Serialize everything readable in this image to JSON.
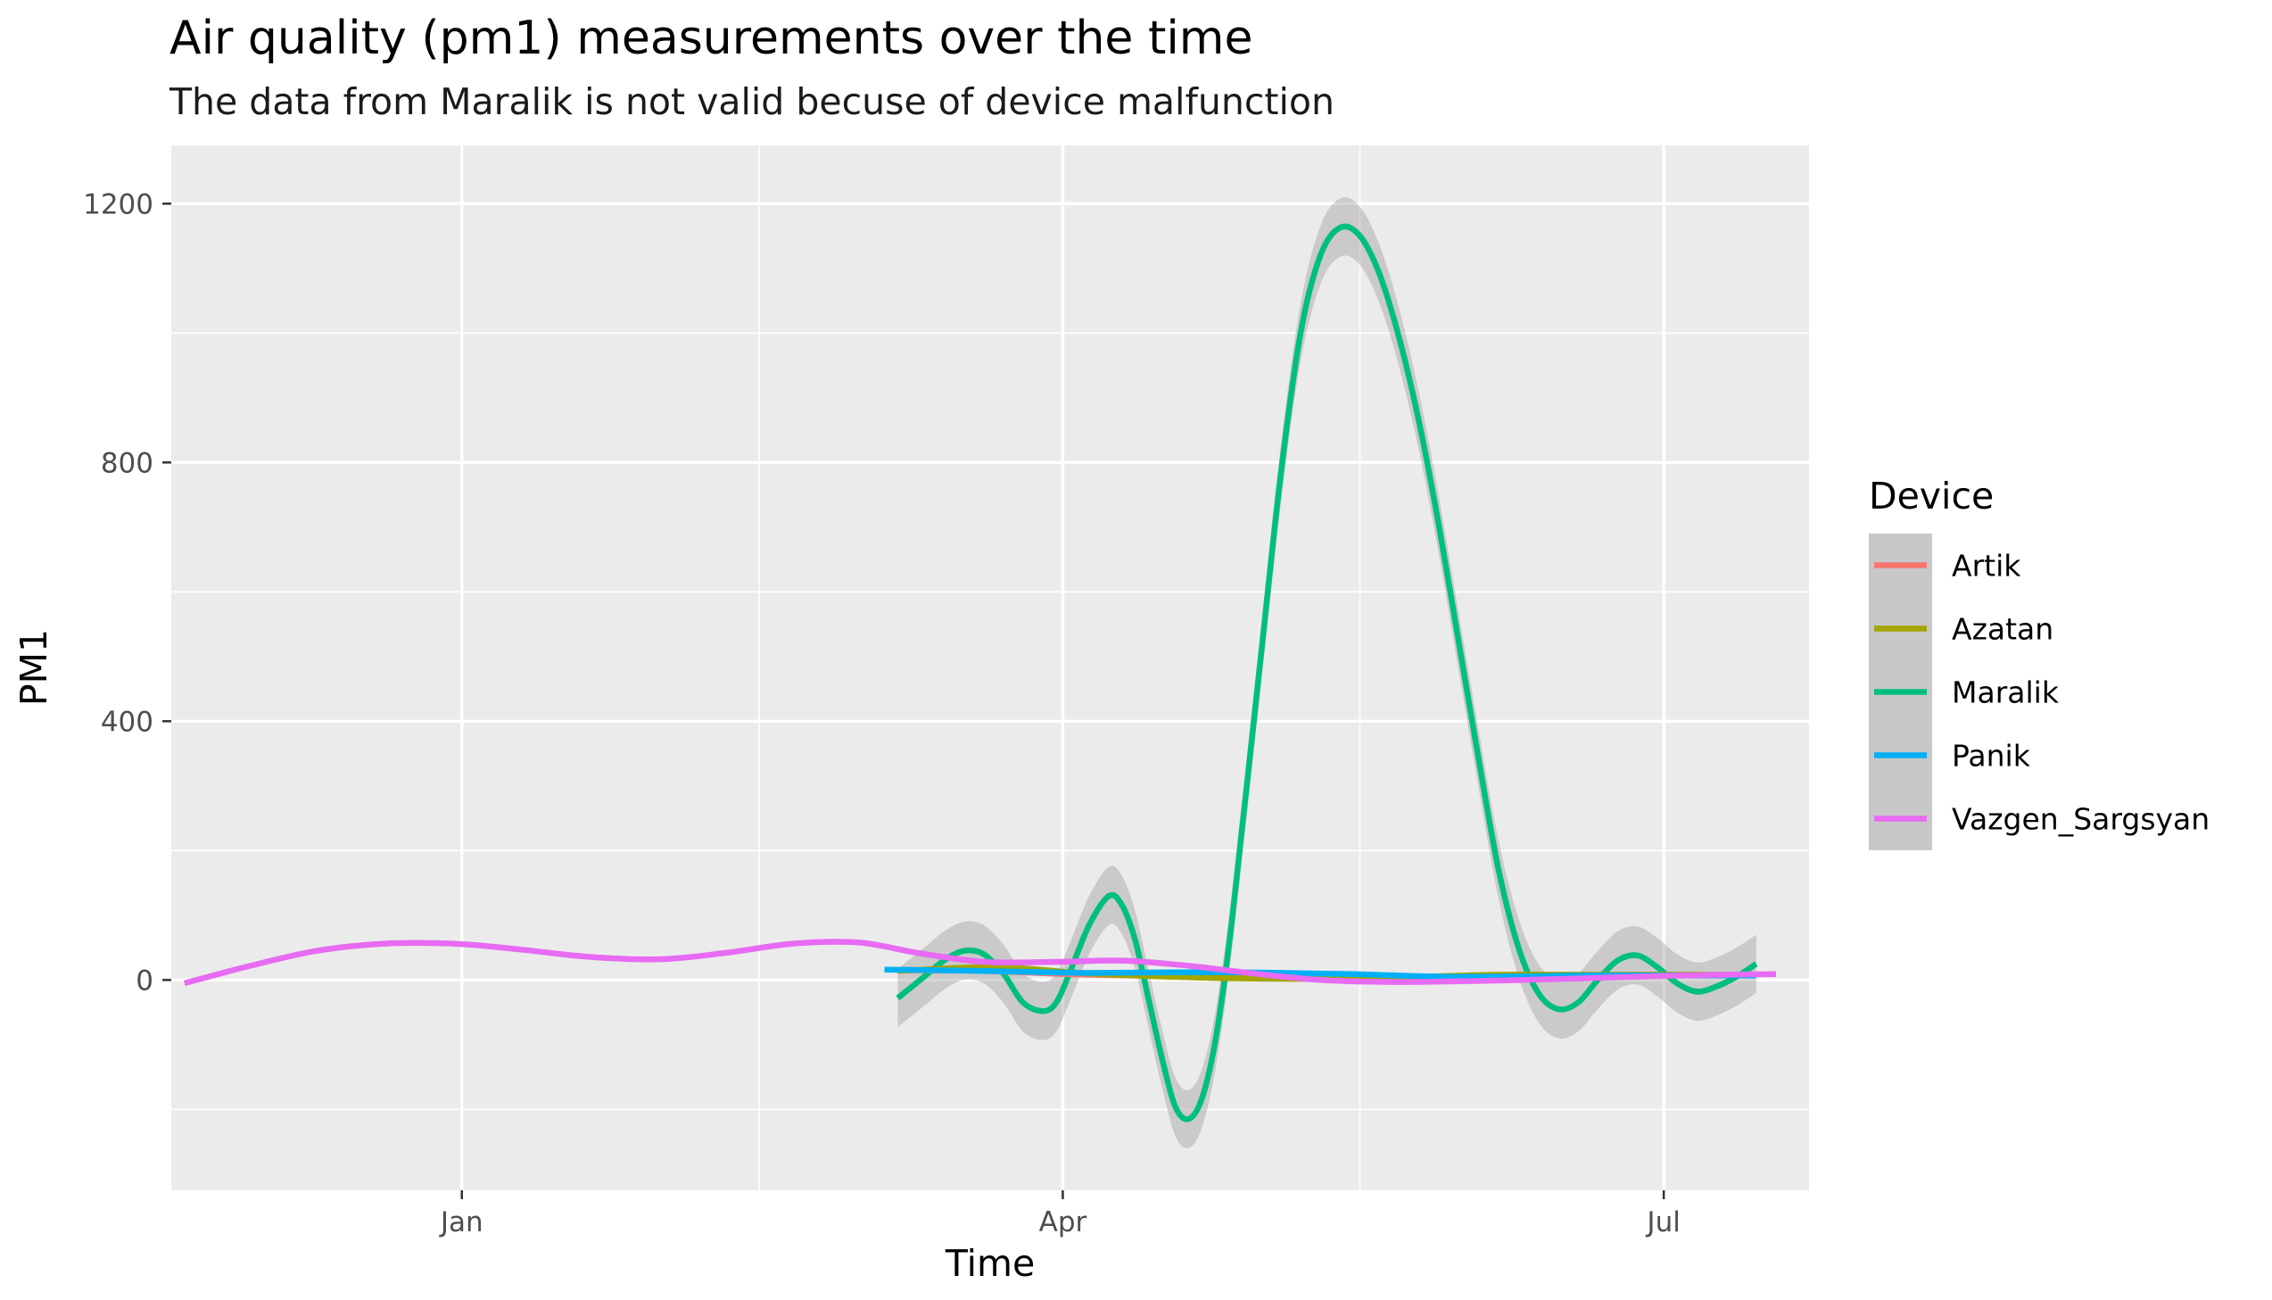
{
  "chart_data": {
    "type": "line",
    "title": "Air quality (pm1) measurements over the time",
    "subtitle": "The data from Maralik is not valid becuse of device malfunction",
    "xlabel": "Time",
    "ylabel": "PM1",
    "x_axis_type": "date",
    "xlim": [
      "2019-11-18",
      "2020-07-23"
    ],
    "ylim": [
      -325,
      1290
    ],
    "x_ticks": [
      {
        "date": "2020-01-01",
        "label": "Jan"
      },
      {
        "date": "2020-04-01",
        "label": "Apr"
      },
      {
        "date": "2020-07-01",
        "label": "Jul"
      }
    ],
    "x_minor_dates": [
      "2019-11-16",
      "2020-02-15",
      "2020-05-16"
    ],
    "y_ticks": [
      0,
      400,
      800,
      1200
    ],
    "y_minor": [
      -200,
      200,
      600,
      1000
    ],
    "grid": true,
    "legend": {
      "title": "Device",
      "position": "right"
    },
    "series": [
      {
        "name": "Artik",
        "color": "#F8766D",
        "points": [
          [
            "2020-03-07",
            15
          ],
          [
            "2020-03-20",
            14
          ],
          [
            "2020-04-05",
            8
          ],
          [
            "2020-04-25",
            5
          ],
          [
            "2020-05-15",
            4
          ],
          [
            "2020-06-05",
            6
          ],
          [
            "2020-06-25",
            8
          ],
          [
            "2020-07-12",
            8
          ]
        ]
      },
      {
        "name": "Azatan",
        "color": "#A3A500",
        "points": [
          [
            "2020-03-07",
            14
          ],
          [
            "2020-03-22",
            20
          ],
          [
            "2020-04-05",
            10
          ],
          [
            "2020-04-25",
            3
          ],
          [
            "2020-05-15",
            2
          ],
          [
            "2020-06-05",
            8
          ],
          [
            "2020-06-25",
            8
          ],
          [
            "2020-07-10",
            8
          ]
        ]
      },
      {
        "name": "Maralik",
        "color": "#00BF7D",
        "band": 45,
        "points": [
          [
            "2020-03-07",
            -28
          ],
          [
            "2020-03-11",
            5
          ],
          [
            "2020-03-14",
            30
          ],
          [
            "2020-03-17",
            45
          ],
          [
            "2020-03-20",
            40
          ],
          [
            "2020-03-23",
            10
          ],
          [
            "2020-03-26",
            -35
          ],
          [
            "2020-03-29",
            -48
          ],
          [
            "2020-03-31",
            -35
          ],
          [
            "2020-04-02",
            10
          ],
          [
            "2020-04-05",
            85
          ],
          [
            "2020-04-08",
            130
          ],
          [
            "2020-04-10",
            115
          ],
          [
            "2020-04-12",
            60
          ],
          [
            "2020-04-14",
            -30
          ],
          [
            "2020-04-16",
            -120
          ],
          [
            "2020-04-18",
            -195
          ],
          [
            "2020-04-20",
            -215
          ],
          [
            "2020-04-22",
            -185
          ],
          [
            "2020-04-24",
            -100
          ],
          [
            "2020-04-26",
            40
          ],
          [
            "2020-04-28",
            220
          ],
          [
            "2020-05-01",
            500
          ],
          [
            "2020-05-04",
            780
          ],
          [
            "2020-05-07",
            1000
          ],
          [
            "2020-05-10",
            1120
          ],
          [
            "2020-05-13",
            1163
          ],
          [
            "2020-05-16",
            1150
          ],
          [
            "2020-05-19",
            1090
          ],
          [
            "2020-05-22",
            990
          ],
          [
            "2020-05-25",
            860
          ],
          [
            "2020-05-28",
            700
          ],
          [
            "2020-05-31",
            520
          ],
          [
            "2020-06-03",
            340
          ],
          [
            "2020-06-06",
            170
          ],
          [
            "2020-06-09",
            50
          ],
          [
            "2020-06-12",
            -20
          ],
          [
            "2020-06-15",
            -45
          ],
          [
            "2020-06-18",
            -35
          ],
          [
            "2020-06-21",
            0
          ],
          [
            "2020-06-24",
            30
          ],
          [
            "2020-06-27",
            38
          ],
          [
            "2020-06-30",
            20
          ],
          [
            "2020-07-03",
            -5
          ],
          [
            "2020-07-06",
            -18
          ],
          [
            "2020-07-09",
            -10
          ],
          [
            "2020-07-12",
            5
          ],
          [
            "2020-07-15",
            25
          ]
        ]
      },
      {
        "name": "Panik",
        "color": "#00B0F6",
        "points": [
          [
            "2020-03-05",
            16
          ],
          [
            "2020-03-20",
            14
          ],
          [
            "2020-04-05",
            11
          ],
          [
            "2020-04-25",
            12
          ],
          [
            "2020-05-15",
            9
          ],
          [
            "2020-05-30",
            5
          ],
          [
            "2020-06-20",
            7
          ],
          [
            "2020-07-15",
            7
          ]
        ]
      },
      {
        "name": "Vazgen_Sargsyan",
        "color": "#E76BF3",
        "points": [
          [
            "2019-11-20",
            -5
          ],
          [
            "2019-11-30",
            22
          ],
          [
            "2019-12-10",
            45
          ],
          [
            "2019-12-20",
            56
          ],
          [
            "2019-12-31",
            56
          ],
          [
            "2020-01-10",
            47
          ],
          [
            "2020-01-20",
            36
          ],
          [
            "2020-01-31",
            32
          ],
          [
            "2020-02-10",
            42
          ],
          [
            "2020-02-20",
            56
          ],
          [
            "2020-03-01",
            58
          ],
          [
            "2020-03-10",
            42
          ],
          [
            "2020-03-20",
            28
          ],
          [
            "2020-03-31",
            28
          ],
          [
            "2020-04-10",
            30
          ],
          [
            "2020-04-20",
            22
          ],
          [
            "2020-04-30",
            10
          ],
          [
            "2020-05-10",
            0
          ],
          [
            "2020-05-20",
            -3
          ],
          [
            "2020-05-31",
            -2
          ],
          [
            "2020-06-10",
            0
          ],
          [
            "2020-06-20",
            3
          ],
          [
            "2020-06-30",
            6
          ],
          [
            "2020-07-10",
            8
          ],
          [
            "2020-07-18",
            9
          ]
        ]
      }
    ]
  }
}
